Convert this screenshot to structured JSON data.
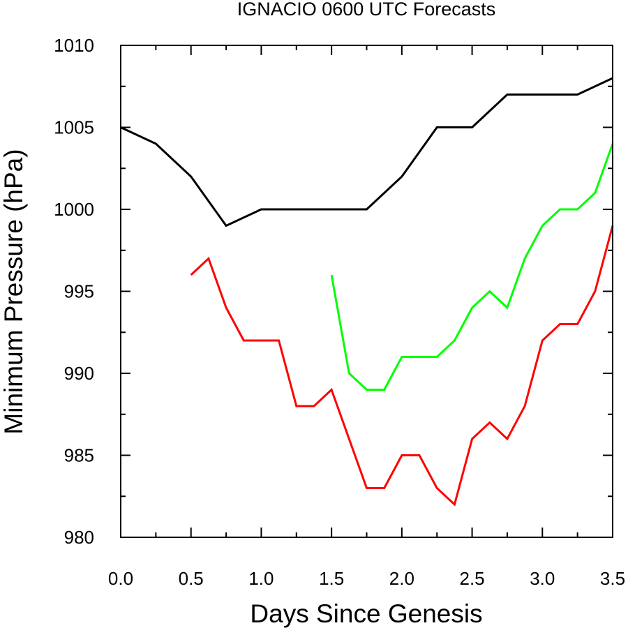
{
  "chart_data": {
    "type": "line",
    "title": "IGNACIO 0600 UTC Forecasts",
    "xlabel": "Days Since Genesis",
    "ylabel": "Minimum Pressure (hPa)",
    "xlim": [
      0,
      3.5
    ],
    "ylim": [
      980,
      1010
    ],
    "xticks": [
      "0.0",
      "0.5",
      "1.0",
      "1.5",
      "2.0",
      "2.5",
      "3.0",
      "3.5"
    ],
    "yticks": [
      "980",
      "985",
      "990",
      "995",
      "1000",
      "1005",
      "1010"
    ],
    "grid": false,
    "series": [
      {
        "color": "#000000",
        "x": [
          0,
          0.25,
          0.5,
          0.75,
          1.0,
          1.25,
          1.5,
          1.75,
          2.0,
          2.25,
          2.5,
          2.75,
          3.0,
          3.25,
          3.5
        ],
        "y": [
          1005,
          1004,
          1002,
          999,
          1000,
          1000,
          1000,
          1000,
          1002,
          1005,
          1005,
          1007,
          1007,
          1007,
          1008
        ]
      },
      {
        "color": "#ff0000",
        "x": [
          0.5,
          0.625,
          0.75,
          0.875,
          1.0,
          1.125,
          1.25,
          1.375,
          1.5,
          1.625,
          1.75,
          1.875,
          2.0,
          2.125,
          2.25,
          2.375,
          2.5,
          2.625,
          2.75,
          2.875,
          3.0,
          3.125,
          3.25,
          3.375,
          3.5
        ],
        "y": [
          996,
          997,
          994,
          992,
          992,
          992,
          988,
          988,
          989,
          986,
          983,
          983,
          985,
          985,
          983,
          982,
          986,
          987,
          986,
          988,
          992,
          993,
          993,
          995,
          999
        ]
      },
      {
        "color": "#00ff00",
        "x": [
          1.5,
          1.625,
          1.75,
          1.875,
          2.0,
          2.125,
          2.25,
          2.375,
          2.5,
          2.625,
          2.75,
          2.875,
          3.0,
          3.125,
          3.25,
          3.375,
          3.5
        ],
        "y": [
          996,
          990,
          989,
          989,
          991,
          991,
          991,
          992,
          994,
          995,
          994,
          997,
          999,
          1000,
          1000,
          1001,
          1004
        ]
      }
    ]
  }
}
